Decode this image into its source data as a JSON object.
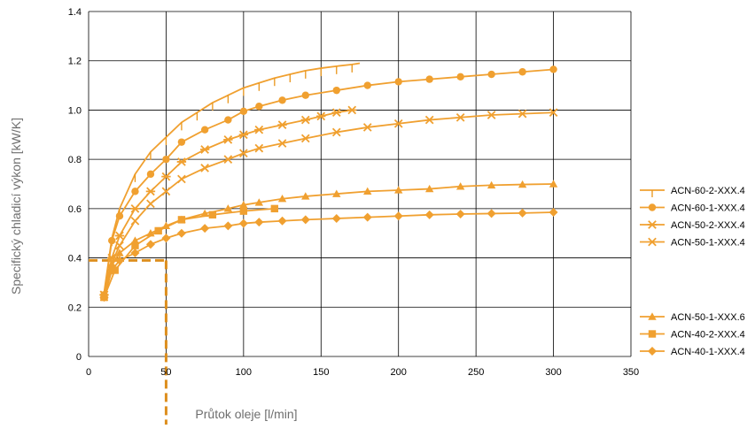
{
  "colors": {
    "series": "#f0a030",
    "marker_line": "#e99518",
    "guide": "#dd8f1e",
    "grid": "#000000",
    "text": "#000000",
    "axis_title": "#6e6e6e"
  },
  "chart_data": {
    "type": "line",
    "xlabel": "Průtok oleje [l/min]",
    "ylabel": "Specifický chladicí výkon [kW/K]",
    "xlim": [
      0,
      350
    ],
    "ylim": [
      0,
      1.4
    ],
    "x_ticks": [
      0,
      50,
      100,
      150,
      200,
      250,
      300,
      350
    ],
    "y_ticks": [
      0,
      0.2,
      0.4,
      0.6,
      0.8,
      1.0,
      1.2,
      1.4
    ],
    "x_tick_labels": [
      "0",
      "50",
      "100",
      "150",
      "200",
      "250",
      "300",
      "350"
    ],
    "y_tick_labels": [
      "0",
      "0.2",
      "0.4",
      "0.6",
      "0.8",
      "1.0",
      "1.2",
      "1.4"
    ],
    "grid": true,
    "legend_position": "right",
    "series": [
      {
        "name": "ACN-60-2-XXX.4",
        "marker": "tick",
        "legend_group": 1,
        "x": [
          10,
          15,
          20,
          30,
          40,
          50,
          60,
          70,
          80,
          90,
          100,
          110,
          120,
          130,
          140,
          150,
          160,
          170,
          175
        ],
        "y": [
          0.26,
          0.48,
          0.6,
          0.74,
          0.83,
          0.89,
          0.95,
          0.99,
          1.03,
          1.06,
          1.09,
          1.11,
          1.13,
          1.145,
          1.16,
          1.17,
          1.178,
          1.185,
          1.19
        ]
      },
      {
        "name": "ACN-60-1-XXX.4",
        "marker": "circle",
        "legend_group": 1,
        "x": [
          10,
          15,
          20,
          30,
          40,
          50,
          60,
          75,
          90,
          100,
          110,
          125,
          140,
          160,
          180,
          200,
          220,
          240,
          260,
          280,
          300
        ],
        "y": [
          0.25,
          0.47,
          0.57,
          0.67,
          0.74,
          0.8,
          0.87,
          0.92,
          0.96,
          0.995,
          1.015,
          1.04,
          1.06,
          1.08,
          1.1,
          1.115,
          1.125,
          1.135,
          1.145,
          1.155,
          1.165
        ]
      },
      {
        "name": "ACN-50-2-XXX.4",
        "marker": "asterisk",
        "legend_group": 1,
        "x": [
          10,
          15,
          20,
          30,
          40,
          50,
          60,
          75,
          90,
          100,
          110,
          125,
          140,
          150,
          160,
          170
        ],
        "y": [
          0.25,
          0.4,
          0.49,
          0.6,
          0.67,
          0.73,
          0.79,
          0.84,
          0.88,
          0.9,
          0.92,
          0.94,
          0.96,
          0.975,
          0.99,
          1.0
        ]
      },
      {
        "name": "ACN-50-1-XXX.4",
        "marker": "x",
        "legend_group": 1,
        "x": [
          10,
          15,
          20,
          30,
          40,
          50,
          60,
          75,
          90,
          100,
          110,
          125,
          140,
          160,
          180,
          200,
          220,
          240,
          260,
          280,
          300
        ],
        "y": [
          0.25,
          0.38,
          0.45,
          0.55,
          0.62,
          0.67,
          0.72,
          0.765,
          0.8,
          0.825,
          0.845,
          0.865,
          0.885,
          0.91,
          0.93,
          0.945,
          0.96,
          0.97,
          0.98,
          0.985,
          0.99
        ]
      },
      {
        "name": "ACN-50-1-XXX.6",
        "marker": "triangle",
        "legend_group": 2,
        "x": [
          10,
          15,
          20,
          30,
          40,
          50,
          60,
          75,
          90,
          100,
          110,
          125,
          140,
          160,
          180,
          200,
          220,
          240,
          260,
          280,
          300
        ],
        "y": [
          0.24,
          0.37,
          0.42,
          0.47,
          0.5,
          0.53,
          0.555,
          0.58,
          0.6,
          0.615,
          0.625,
          0.64,
          0.65,
          0.66,
          0.67,
          0.675,
          0.68,
          0.69,
          0.695,
          0.698,
          0.7
        ]
      },
      {
        "name": "ACN-40-2-XXX.4",
        "marker": "square",
        "legend_group": 2,
        "x": [
          10,
          17,
          30,
          45,
          60,
          80,
          100,
          120
        ],
        "y": [
          0.24,
          0.35,
          0.45,
          0.51,
          0.555,
          0.575,
          0.59,
          0.6
        ]
      },
      {
        "name": "ACN-40-1-XXX.4",
        "marker": "diamond",
        "legend_group": 2,
        "x": [
          10,
          15,
          20,
          30,
          40,
          50,
          60,
          75,
          90,
          100,
          110,
          125,
          140,
          160,
          180,
          200,
          220,
          240,
          260,
          280,
          300
        ],
        "y": [
          0.24,
          0.35,
          0.39,
          0.42,
          0.455,
          0.48,
          0.5,
          0.52,
          0.53,
          0.54,
          0.545,
          0.55,
          0.555,
          0.56,
          0.565,
          0.57,
          0.575,
          0.578,
          0.58,
          0.582,
          0.585
        ]
      }
    ],
    "guide_lines": {
      "x": 50,
      "y": 0.39,
      "style": "dashed"
    }
  }
}
